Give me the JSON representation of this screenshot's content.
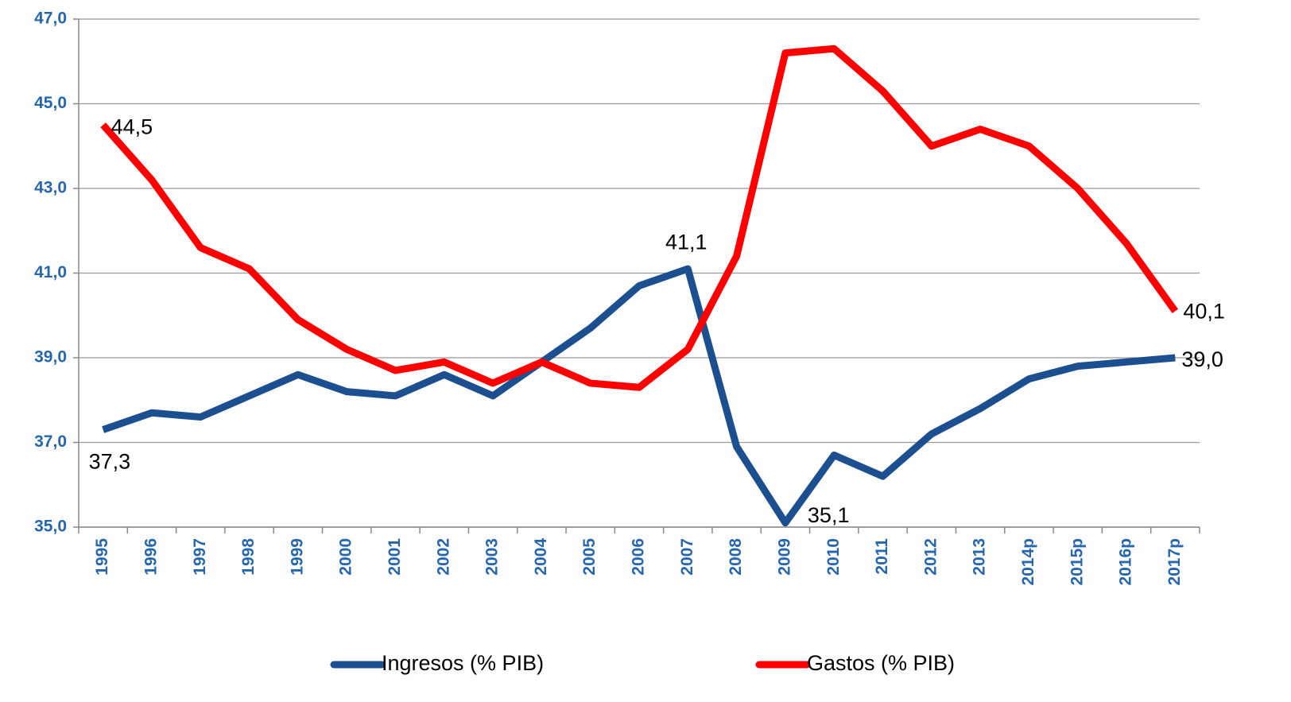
{
  "chart_data": {
    "type": "line",
    "categories": [
      "1995",
      "1996",
      "1997",
      "1998",
      "1999",
      "2000",
      "2001",
      "2002",
      "2003",
      "2004",
      "2005",
      "2006",
      "2007",
      "2008",
      "2009",
      "2010",
      "2011",
      "2012",
      "2013",
      "2014p",
      "2015p",
      "2016p",
      "2017p"
    ],
    "series": [
      {
        "name": "Ingresos (% PIB)",
        "color": "#1c4f8f",
        "values": [
          37.3,
          37.7,
          37.6,
          38.1,
          38.6,
          38.2,
          38.1,
          38.6,
          38.1,
          38.9,
          39.7,
          40.7,
          41.1,
          36.9,
          35.1,
          36.7,
          36.2,
          37.2,
          37.8,
          38.5,
          38.8,
          38.9,
          39.0
        ],
        "value_labels": [
          "37,3",
          null,
          null,
          null,
          null,
          null,
          null,
          null,
          null,
          null,
          null,
          null,
          "41,1",
          null,
          "35,1",
          null,
          null,
          null,
          null,
          null,
          null,
          null,
          "39,0"
        ]
      },
      {
        "name": "Gastos (% PIB)",
        "color": "#ff0000",
        "values": [
          44.5,
          43.2,
          41.6,
          41.1,
          39.9,
          39.2,
          38.7,
          38.9,
          38.4,
          38.9,
          38.4,
          38.3,
          39.2,
          41.4,
          46.2,
          46.3,
          45.3,
          44.0,
          44.4,
          44.0,
          43.0,
          41.7,
          40.1
        ],
        "value_labels": [
          "44,5",
          null,
          null,
          null,
          null,
          null,
          null,
          null,
          null,
          null,
          null,
          null,
          null,
          null,
          null,
          null,
          null,
          null,
          null,
          null,
          null,
          null,
          "40,1"
        ]
      }
    ],
    "ylim": [
      35,
      47
    ],
    "yticks": [
      {
        "value": 35,
        "label": "35,0"
      },
      {
        "value": 37,
        "label": "37,0"
      },
      {
        "value": 39,
        "label": "39,0"
      },
      {
        "value": 41,
        "label": "41,0"
      },
      {
        "value": 43,
        "label": "43,0"
      },
      {
        "value": 45,
        "label": "45,0"
      },
      {
        "value": 47,
        "label": "47,0"
      }
    ],
    "grid": true,
    "legend": "bottom"
  }
}
